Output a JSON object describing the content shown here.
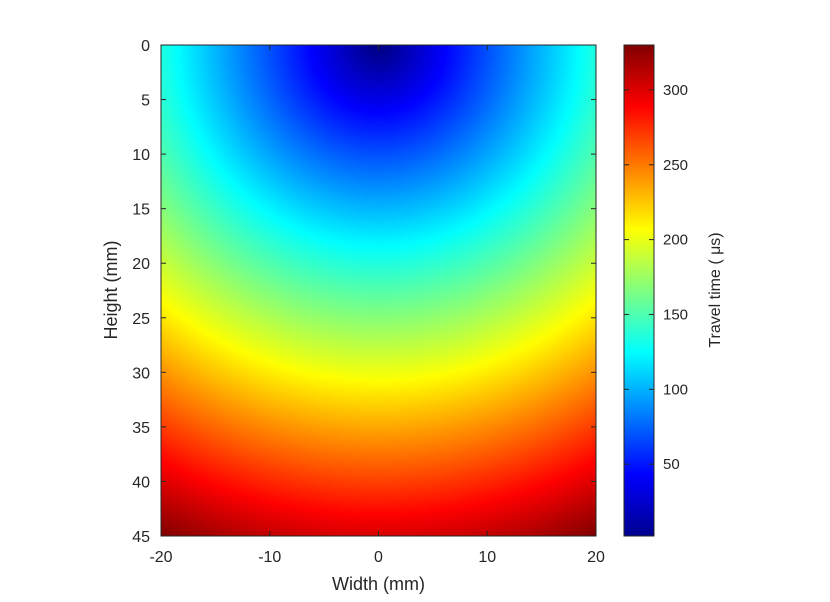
{
  "chart_data": {
    "type": "heatmap",
    "title": "",
    "xlabel": "Width (mm)",
    "ylabel": "Height (mm)",
    "xlim": [
      -20,
      20
    ],
    "ylim": [
      0,
      45
    ],
    "y_direction": "reversed",
    "xticks": [
      -20,
      -10,
      0,
      10,
      20
    ],
    "yticks": [
      0,
      5,
      10,
      15,
      20,
      25,
      30,
      35,
      40,
      45
    ],
    "colormap": "jet",
    "field": {
      "description_of_values": "travel time from source at top center",
      "source": [
        0,
        0
      ],
      "sampled_values": [
        {
          "x": 0,
          "y": 0,
          "value": 2
        },
        {
          "x": 0,
          "y": 5,
          "value": 37
        },
        {
          "x": 0,
          "y": 10,
          "value": 73
        },
        {
          "x": 0,
          "y": 20,
          "value": 147
        },
        {
          "x": 0,
          "y": 30,
          "value": 220
        },
        {
          "x": 0,
          "y": 45,
          "value": 300
        },
        {
          "x": -20,
          "y": 0,
          "value": 147
        },
        {
          "x": 20,
          "y": 0,
          "value": 147
        },
        {
          "x": -20,
          "y": 45,
          "value": 330
        },
        {
          "x": 20,
          "y": 45,
          "value": 330
        }
      ]
    },
    "colorbar": {
      "label": "Travel time (   μs)",
      "range": [
        2,
        330
      ],
      "ticks": [
        50,
        100,
        150,
        200,
        250,
        300
      ],
      "placement": "right"
    },
    "grid": false
  }
}
